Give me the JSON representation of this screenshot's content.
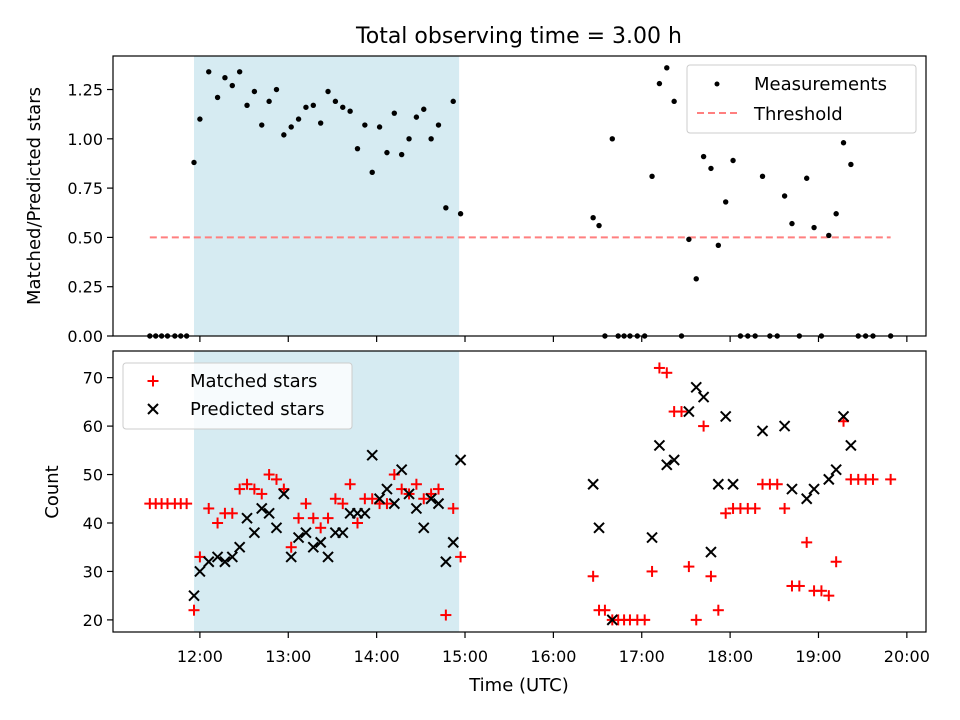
{
  "figure": {
    "title": "Total observing time = 3.00 h",
    "xlabel": "Time (UTC)"
  },
  "chart_data": [
    {
      "type": "scatter",
      "ylabel": "Matched/Predicted stars",
      "ylim": [
        0,
        1.42
      ],
      "xlim": [
        "11:01",
        "20:13"
      ],
      "yticks": [
        "0.00",
        "0.25",
        "0.50",
        "0.75",
        "1.00",
        "1.25"
      ],
      "shaded_interval": [
        "11:56",
        "14:56"
      ],
      "grid": false,
      "legend_position": "upper right",
      "threshold": {
        "name": "Threshold",
        "value": 0.5,
        "x_start": "11:26",
        "x_end": "19:49",
        "color": "#ff7f7f"
      },
      "series": [
        {
          "name": "Measurements",
          "color": "#000000",
          "marker": "dot",
          "points": [
            [
              "11:26",
              0
            ],
            [
              "11:30",
              0
            ],
            [
              "11:34",
              0
            ],
            [
              "11:38",
              0
            ],
            [
              "11:43",
              0
            ],
            [
              "11:47",
              0
            ],
            [
              "11:51",
              0
            ],
            [
              "11:56",
              0.88
            ],
            [
              "12:00",
              1.1
            ],
            [
              "12:06",
              1.34
            ],
            [
              "12:12",
              1.21
            ],
            [
              "12:17",
              1.31
            ],
            [
              "12:22",
              1.27
            ],
            [
              "12:27",
              1.34
            ],
            [
              "12:32",
              1.17
            ],
            [
              "12:37",
              1.24
            ],
            [
              "12:42",
              1.07
            ],
            [
              "12:47",
              1.19
            ],
            [
              "12:52",
              1.25
            ],
            [
              "12:57",
              1.02
            ],
            [
              "13:02",
              1.06
            ],
            [
              "13:07",
              1.1
            ],
            [
              "13:12",
              1.16
            ],
            [
              "13:17",
              1.17
            ],
            [
              "13:22",
              1.08
            ],
            [
              "13:27",
              1.24
            ],
            [
              "13:32",
              1.19
            ],
            [
              "13:37",
              1.16
            ],
            [
              "13:42",
              1.14
            ],
            [
              "13:47",
              0.95
            ],
            [
              "13:52",
              1.07
            ],
            [
              "13:57",
              0.83
            ],
            [
              "14:02",
              1.06
            ],
            [
              "14:07",
              0.93
            ],
            [
              "14:12",
              1.13
            ],
            [
              "14:17",
              0.92
            ],
            [
              "14:22",
              1.0
            ],
            [
              "14:27",
              1.11
            ],
            [
              "14:32",
              1.15
            ],
            [
              "14:37",
              1.0
            ],
            [
              "14:42",
              1.07
            ],
            [
              "14:47",
              0.65
            ],
            [
              "14:52",
              1.19
            ],
            [
              "14:57",
              0.62
            ],
            [
              "16:27",
              0.6
            ],
            [
              "16:31",
              0.56
            ],
            [
              "16:35",
              0
            ],
            [
              "16:40",
              1.0
            ],
            [
              "16:44",
              0
            ],
            [
              "16:48",
              0
            ],
            [
              "16:52",
              0
            ],
            [
              "16:57",
              0
            ],
            [
              "17:02",
              0
            ],
            [
              "17:07",
              0.81
            ],
            [
              "17:12",
              1.28
            ],
            [
              "17:17",
              1.36
            ],
            [
              "17:22",
              1.19
            ],
            [
              "17:27",
              0
            ],
            [
              "17:32",
              0.49
            ],
            [
              "17:37",
              0.29
            ],
            [
              "17:42",
              0.91
            ],
            [
              "17:47",
              0.85
            ],
            [
              "17:52",
              0.46
            ],
            [
              "17:57",
              0.68
            ],
            [
              "18:02",
              0.89
            ],
            [
              "18:07",
              0
            ],
            [
              "18:12",
              0
            ],
            [
              "18:17",
              0
            ],
            [
              "18:22",
              0.81
            ],
            [
              "18:27",
              0
            ],
            [
              "18:32",
              0
            ],
            [
              "18:37",
              0.71
            ],
            [
              "18:42",
              0.57
            ],
            [
              "18:47",
              0
            ],
            [
              "18:52",
              0.8
            ],
            [
              "18:57",
              0.55
            ],
            [
              "19:02",
              0
            ],
            [
              "19:07",
              0.51
            ],
            [
              "19:12",
              0.62
            ],
            [
              "19:17",
              0.98
            ],
            [
              "19:22",
              0.87
            ],
            [
              "19:27",
              0
            ],
            [
              "19:32",
              0
            ],
            [
              "19:37",
              0
            ],
            [
              "19:49",
              0
            ]
          ]
        }
      ]
    },
    {
      "type": "scatter",
      "ylabel": "Count",
      "ylim": [
        17.5,
        75.5
      ],
      "xlim": [
        "11:01",
        "20:13"
      ],
      "yticks": [
        "20",
        "30",
        "40",
        "50",
        "60",
        "70"
      ],
      "xticks": [
        "12:00",
        "13:00",
        "14:00",
        "15:00",
        "16:00",
        "17:00",
        "18:00",
        "19:00",
        "20:00"
      ],
      "shaded_interval": [
        "11:56",
        "14:56"
      ],
      "grid": false,
      "legend_position": "upper left",
      "series": [
        {
          "name": "Matched stars",
          "color": "#ff0000",
          "marker": "plus",
          "points": [
            [
              "11:26",
              44
            ],
            [
              "11:30",
              44
            ],
            [
              "11:34",
              44
            ],
            [
              "11:38",
              44
            ],
            [
              "11:43",
              44
            ],
            [
              "11:47",
              44
            ],
            [
              "11:51",
              44
            ],
            [
              "11:56",
              22
            ],
            [
              "12:00",
              33
            ],
            [
              "12:06",
              43
            ],
            [
              "12:12",
              40
            ],
            [
              "12:17",
              42
            ],
            [
              "12:22",
              42
            ],
            [
              "12:27",
              47
            ],
            [
              "12:32",
              48
            ],
            [
              "12:37",
              47
            ],
            [
              "12:42",
              46
            ],
            [
              "12:47",
              50
            ],
            [
              "12:52",
              49
            ],
            [
              "12:57",
              47
            ],
            [
              "13:02",
              35
            ],
            [
              "13:07",
              41
            ],
            [
              "13:12",
              44
            ],
            [
              "13:17",
              41
            ],
            [
              "13:22",
              39
            ],
            [
              "13:27",
              41
            ],
            [
              "13:32",
              45
            ],
            [
              "13:37",
              44
            ],
            [
              "13:42",
              48
            ],
            [
              "13:47",
              40
            ],
            [
              "13:52",
              45
            ],
            [
              "13:57",
              45
            ],
            [
              "14:02",
              44
            ],
            [
              "14:07",
              44
            ],
            [
              "14:12",
              50
            ],
            [
              "14:17",
              47
            ],
            [
              "14:22",
              46
            ],
            [
              "14:27",
              48
            ],
            [
              "14:32",
              45
            ],
            [
              "14:37",
              46
            ],
            [
              "14:42",
              47
            ],
            [
              "14:47",
              21
            ],
            [
              "14:52",
              43
            ],
            [
              "14:57",
              33
            ],
            [
              "16:27",
              29
            ],
            [
              "16:31",
              22
            ],
            [
              "16:35",
              22
            ],
            [
              "16:40",
              20
            ],
            [
              "16:44",
              20
            ],
            [
              "16:48",
              20
            ],
            [
              "16:52",
              20
            ],
            [
              "16:57",
              20
            ],
            [
              "17:02",
              20
            ],
            [
              "17:07",
              30
            ],
            [
              "17:12",
              72
            ],
            [
              "17:17",
              71
            ],
            [
              "17:22",
              63
            ],
            [
              "17:27",
              63
            ],
            [
              "17:32",
              31
            ],
            [
              "17:37",
              20
            ],
            [
              "17:42",
              60
            ],
            [
              "17:47",
              29
            ],
            [
              "17:52",
              22
            ],
            [
              "17:57",
              42
            ],
            [
              "18:02",
              43
            ],
            [
              "18:07",
              43
            ],
            [
              "18:12",
              43
            ],
            [
              "18:17",
              43
            ],
            [
              "18:22",
              48
            ],
            [
              "18:27",
              48
            ],
            [
              "18:32",
              48
            ],
            [
              "18:37",
              43
            ],
            [
              "18:42",
              27
            ],
            [
              "18:47",
              27
            ],
            [
              "18:52",
              36
            ],
            [
              "18:57",
              26
            ],
            [
              "19:02",
              26
            ],
            [
              "19:07",
              25
            ],
            [
              "19:12",
              32
            ],
            [
              "19:17",
              61
            ],
            [
              "19:22",
              49
            ],
            [
              "19:27",
              49
            ],
            [
              "19:32",
              49
            ],
            [
              "19:37",
              49
            ],
            [
              "19:49",
              49
            ]
          ]
        },
        {
          "name": "Predicted stars",
          "color": "#000000",
          "marker": "x",
          "points": [
            [
              "11:56",
              25
            ],
            [
              "12:00",
              30
            ],
            [
              "12:06",
              32
            ],
            [
              "12:12",
              33
            ],
            [
              "12:17",
              32
            ],
            [
              "12:22",
              33
            ],
            [
              "12:27",
              35
            ],
            [
              "12:32",
              41
            ],
            [
              "12:37",
              38
            ],
            [
              "12:42",
              43
            ],
            [
              "12:47",
              42
            ],
            [
              "12:52",
              39
            ],
            [
              "12:57",
              46
            ],
            [
              "13:02",
              33
            ],
            [
              "13:07",
              37
            ],
            [
              "13:12",
              38
            ],
            [
              "13:17",
              35
            ],
            [
              "13:22",
              36
            ],
            [
              "13:27",
              33
            ],
            [
              "13:32",
              38
            ],
            [
              "13:37",
              38
            ],
            [
              "13:42",
              42
            ],
            [
              "13:47",
              42
            ],
            [
              "13:52",
              42
            ],
            [
              "13:57",
              54
            ],
            [
              "14:02",
              45
            ],
            [
              "14:07",
              47
            ],
            [
              "14:12",
              44
            ],
            [
              "14:17",
              51
            ],
            [
              "14:22",
              46
            ],
            [
              "14:27",
              43
            ],
            [
              "14:32",
              39
            ],
            [
              "14:37",
              45
            ],
            [
              "14:42",
              44
            ],
            [
              "14:47",
              32
            ],
            [
              "14:52",
              36
            ],
            [
              "14:57",
              53
            ],
            [
              "16:27",
              48
            ],
            [
              "16:31",
              39
            ],
            [
              "16:40",
              20
            ],
            [
              "17:07",
              37
            ],
            [
              "17:12",
              56
            ],
            [
              "17:17",
              52
            ],
            [
              "17:22",
              53
            ],
            [
              "17:32",
              63
            ],
            [
              "17:37",
              68
            ],
            [
              "17:42",
              66
            ],
            [
              "17:47",
              34
            ],
            [
              "17:52",
              48
            ],
            [
              "17:57",
              62
            ],
            [
              "18:02",
              48
            ],
            [
              "18:22",
              59
            ],
            [
              "18:37",
              60
            ],
            [
              "18:42",
              47
            ],
            [
              "18:52",
              45
            ],
            [
              "18:57",
              47
            ],
            [
              "19:07",
              49
            ],
            [
              "19:12",
              51
            ],
            [
              "19:17",
              62
            ],
            [
              "19:22",
              56
            ]
          ]
        }
      ]
    }
  ],
  "colors": {
    "shade": "#add8e6",
    "matched": "#ff0000",
    "predicted": "#000000",
    "measurements": "#000000",
    "threshold": "#ff7f7f"
  }
}
